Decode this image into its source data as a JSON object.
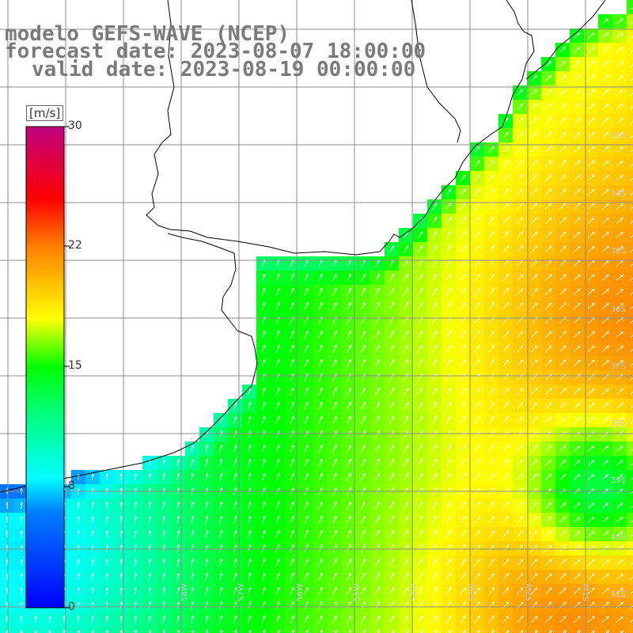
{
  "title": {
    "line1": "modelo GEFS-WAVE (NCEP)",
    "line2": "forecast date: 2023-08-07 18:00:00",
    "line3": "valid date: 2023-08-19 00:00:00"
  },
  "colorbar": {
    "unit": "[m/s]",
    "ticks": [
      "30",
      "22",
      "15",
      "8",
      "0"
    ]
  },
  "lat_labels": [
    "33S",
    "34S",
    "35S",
    "36S",
    "37S",
    "38S",
    "39S",
    "40S",
    "41S"
  ],
  "lon_labels": [
    "58W",
    "57W",
    "56W",
    "55W",
    "54W",
    "53W",
    "52W",
    "51W"
  ],
  "colors": {
    "land": "#ffffff",
    "coast": "#000000",
    "grid": "#8c8c8c",
    "arrow": "#ffffff"
  }
}
